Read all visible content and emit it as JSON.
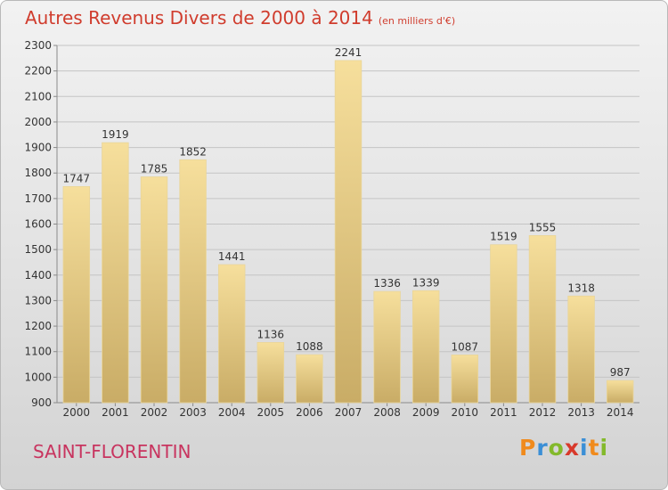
{
  "header": {
    "title": "Autres Revenus Divers de 2000 à 2014",
    "subtitle": "(en milliers d'€)"
  },
  "footer": {
    "city": "SAINT-FLORENTIN",
    "logo_letters": [
      "P",
      "r",
      "o",
      "x",
      "i",
      "t",
      "i"
    ]
  },
  "colors": {
    "title": "#d03c2d",
    "city": "#c8345f",
    "bar_light": "#f6df9c",
    "bar_dark": "#c9ac66"
  },
  "chart_data": {
    "type": "bar",
    "title": "Autres Revenus Divers de 2000 à 2014",
    "subtitle": "(en milliers d'€)",
    "xlabel": "",
    "ylabel": "",
    "categories": [
      "2000",
      "2001",
      "2002",
      "2003",
      "2004",
      "2005",
      "2006",
      "2007",
      "2008",
      "2009",
      "2010",
      "2011",
      "2012",
      "2013",
      "2014"
    ],
    "values": [
      1747,
      1919,
      1785,
      1852,
      1441,
      1136,
      1088,
      2241,
      1336,
      1339,
      1087,
      1519,
      1555,
      1318,
      987
    ],
    "ylim": [
      900,
      2300
    ],
    "yticks": [
      900,
      1000,
      1100,
      1200,
      1300,
      1400,
      1500,
      1600,
      1700,
      1800,
      1900,
      2000,
      2100,
      2200,
      2300
    ],
    "grid": true,
    "legend": "none"
  }
}
